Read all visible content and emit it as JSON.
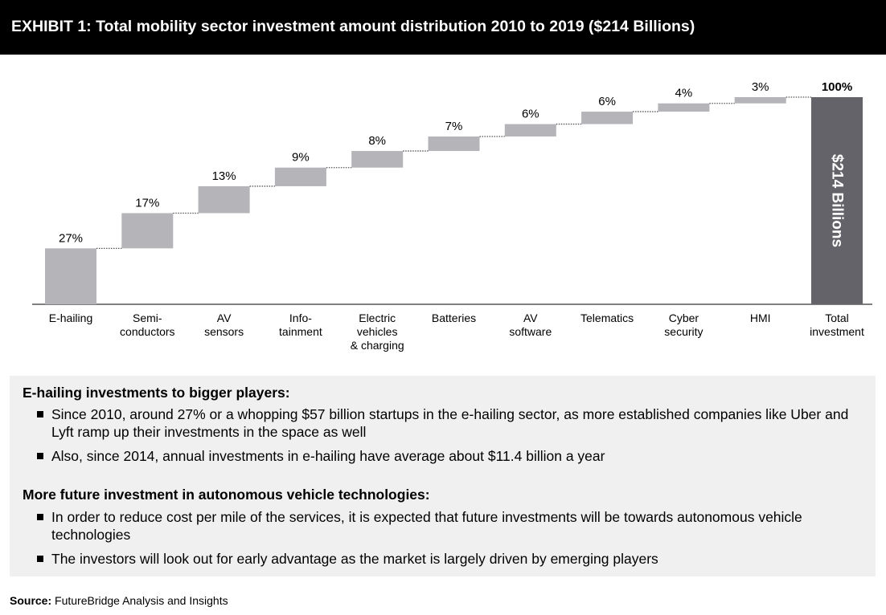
{
  "header": {
    "title": "EXHIBIT 1: Total mobility sector investment amount distribution 2010 to 2019 ($214 Billions)"
  },
  "chart_data": {
    "type": "bar",
    "subtype": "waterfall",
    "ylim": [
      0,
      100
    ],
    "grid": false,
    "legend": "none",
    "categories": [
      [
        "E-hailing"
      ],
      [
        "Semi-",
        "conductors"
      ],
      [
        "AV",
        "sensors"
      ],
      [
        "Info-",
        "tainment"
      ],
      [
        "Electric",
        "vehicles",
        "& charging"
      ],
      [
        "Batteries"
      ],
      [
        "AV",
        "software"
      ],
      [
        "Telematics"
      ],
      [
        "Cyber",
        "security"
      ],
      [
        "HMI"
      ],
      [
        "Total",
        "investment"
      ]
    ],
    "values": [
      27,
      17,
      13,
      9,
      8,
      7,
      6,
      6,
      4,
      3,
      100
    ],
    "value_labels": [
      "27%",
      "17%",
      "13%",
      "9%",
      "8%",
      "7%",
      "6%",
      "6%",
      "4%",
      "3%",
      "100%"
    ],
    "total_inner_label": "$214 Billions",
    "colors": {
      "segment": "#b4b4b9",
      "total": "#636369",
      "connector": "#555555",
      "axis": "#333333"
    }
  },
  "notes": {
    "sections": [
      {
        "title": "E-hailing investments to bigger players:",
        "bullets": [
          "Since 2010, around 27% or a whopping $57 billion startups in the e-hailing sector, as more established companies like Uber and Lyft ramp up their investments in the space as well",
          "Also, since 2014, annual investments in e-hailing have average about $11.4 billion a year"
        ]
      },
      {
        "title": "More future investment in autonomous vehicle technologies:",
        "bullets": [
          "In order to reduce cost per mile of the services, it is expected that future investments will be towards autonomous vehicle technologies",
          "The investors will look out for early advantage as the market is largely driven by emerging players"
        ]
      }
    ]
  },
  "source": {
    "label": "Source:",
    "text": " FutureBridge Analysis and Insights"
  }
}
